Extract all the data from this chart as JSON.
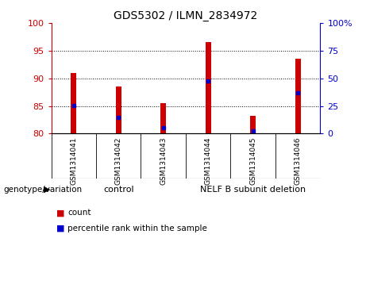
{
  "title": "GDS5302 / ILMN_2834972",
  "samples": [
    "GSM1314041",
    "GSM1314042",
    "GSM1314043",
    "GSM1314044",
    "GSM1314045",
    "GSM1314046"
  ],
  "count_values": [
    91.0,
    88.5,
    85.5,
    96.5,
    83.2,
    93.5
  ],
  "percentile_values": [
    85.1,
    82.9,
    81.1,
    89.5,
    80.5,
    87.4
  ],
  "ylim_left": [
    80,
    100
  ],
  "yticks_left": [
    80,
    85,
    90,
    95,
    100
  ],
  "yticks_right_vals": [
    0,
    25,
    50,
    75,
    100
  ],
  "yticks_right_labels": [
    "0",
    "25",
    "50",
    "75",
    "100%"
  ],
  "bar_color": "#cc0000",
  "dot_color": "#0000cc",
  "group_labels": [
    "control",
    "NELF B subunit deletion"
  ],
  "group_color": "#90ee90",
  "label_bg": "#c8c8c8",
  "group_label_prefix": "genotype/variation",
  "legend_count": "count",
  "legend_percentile": "percentile rank within the sample",
  "bg_color": "#ffffff",
  "bar_width": 0.12
}
